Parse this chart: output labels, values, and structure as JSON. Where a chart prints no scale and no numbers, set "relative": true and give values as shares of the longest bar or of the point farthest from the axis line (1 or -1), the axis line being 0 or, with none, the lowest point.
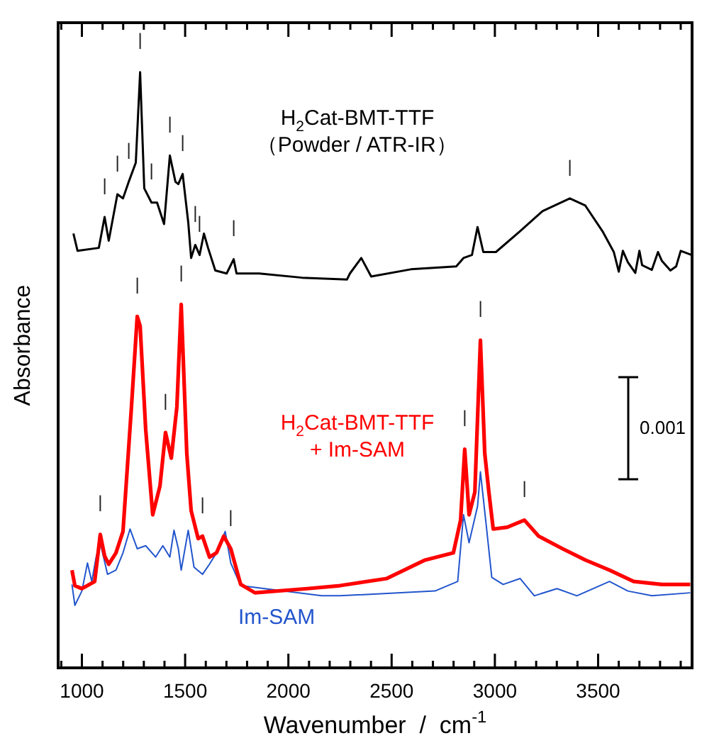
{
  "chart_data": {
    "type": "line",
    "relative": true,
    "xlabel": "Wavenumber  /  cm$^{-1}$",
    "ylabel": "Absorbance",
    "xlim": [
      885,
      3955
    ],
    "xticks": [
      {
        "value": 900,
        "label": null
      },
      1000,
      {
        "value": 1100,
        "label": null
      },
      {
        "value": 1200,
        "label": null
      },
      {
        "value": 1300,
        "label": null
      },
      {
        "value": 1400,
        "label": null
      },
      1500,
      {
        "value": 1600,
        "label": null
      },
      {
        "value": 1700,
        "label": null
      },
      {
        "value": 1800,
        "label": null
      },
      {
        "value": 1900,
        "label": null
      },
      2000,
      {
        "value": 2100,
        "label": null
      },
      {
        "value": 2200,
        "label": null
      },
      {
        "value": 2300,
        "label": null
      },
      {
        "value": 2400,
        "label": null
      },
      2500,
      {
        "value": 2600,
        "label": null
      },
      {
        "value": 2700,
        "label": null
      },
      {
        "value": 2800,
        "label": null
      },
      {
        "value": 2900,
        "label": null
      },
      3000,
      {
        "value": 3100,
        "label": null
      },
      {
        "value": 3200,
        "label": null
      },
      {
        "value": 3300,
        "label": null
      },
      {
        "value": 3400,
        "label": null
      },
      3500,
      {
        "value": 3600,
        "label": null
      },
      {
        "value": 3700,
        "label": null
      },
      {
        "value": 3800,
        "label": null
      },
      {
        "value": 3900,
        "label": null
      }
    ],
    "grid": false,
    "legend": false,
    "marker": "none",
    "line_style": "solid",
    "series": [
      {
        "name": "H$_{2}$Cat-BMT-TTF\n（Powder / ATR-IR）",
        "color": "#000000",
        "x": [
          959,
          979,
          1082,
          1110,
          1130,
          1172,
          1199,
          1227,
          1261,
          1282,
          1302,
          1337,
          1364,
          1398,
          1426,
          1453,
          1467,
          1488,
          1515,
          1529,
          1549,
          1570,
          1591,
          1611,
          1646,
          1701,
          1735,
          1749,
          1859,
          2065,
          2284,
          2298,
          2353,
          2401,
          2593,
          2813,
          2848,
          2889,
          2916,
          2944,
          3005,
          3122,
          3232,
          3363,
          3438,
          3521,
          3576,
          3600,
          3620,
          3644,
          3680,
          3700,
          3713,
          3760,
          3790,
          3809,
          3850,
          3878,
          3900,
          3953
        ],
        "values": [
          0.729,
          0.7,
          0.705,
          0.757,
          0.717,
          0.795,
          0.788,
          0.816,
          0.848,
          1.0,
          0.805,
          0.781,
          0.781,
          0.745,
          0.86,
          0.816,
          0.812,
          0.829,
          0.748,
          0.688,
          0.71,
          0.693,
          0.729,
          0.705,
          0.667,
          0.662,
          0.686,
          0.662,
          0.662,
          0.655,
          0.652,
          0.662,
          0.688,
          0.657,
          0.669,
          0.674,
          0.688,
          0.693,
          0.74,
          0.698,
          0.698,
          0.733,
          0.767,
          0.788,
          0.776,
          0.733,
          0.698,
          0.665,
          0.7,
          0.681,
          0.663,
          0.7,
          0.676,
          0.668,
          0.698,
          0.683,
          0.667,
          0.674,
          0.7,
          0.693
        ]
      },
      {
        "name": "H$_{2}$Cat-BMT-TTF\n+ Im-SAM",
        "color": "#ff0000",
        "x": [
          952,
          966,
          1000,
          1062,
          1089,
          1110,
          1130,
          1165,
          1199,
          1240,
          1268,
          1282,
          1309,
          1343,
          1378,
          1405,
          1433,
          1460,
          1481,
          1508,
          1529,
          1563,
          1584,
          1618,
          1652,
          1687,
          1721,
          1769,
          1838,
          2092,
          2250,
          2477,
          2662,
          2799,
          2834,
          2854,
          2875,
          2903,
          2930,
          2951,
          2971,
          2992,
          3060,
          3143,
          3212,
          3328,
          3438,
          3555,
          3672,
          3809,
          3946
        ],
        "values": [
          0.164,
          0.138,
          0.133,
          0.145,
          0.224,
          0.188,
          0.174,
          0.193,
          0.229,
          0.438,
          0.59,
          0.574,
          0.4,
          0.257,
          0.305,
          0.395,
          0.352,
          0.438,
          0.61,
          0.36,
          0.264,
          0.217,
          0.221,
          0.186,
          0.193,
          0.221,
          0.2,
          0.14,
          0.126,
          0.133,
          0.138,
          0.15,
          0.181,
          0.193,
          0.248,
          0.367,
          0.257,
          0.295,
          0.55,
          0.36,
          0.295,
          0.233,
          0.236,
          0.248,
          0.221,
          0.2,
          0.181,
          0.164,
          0.145,
          0.14,
          0.14
        ]
      },
      {
        "name": "Im-SAM",
        "color": "#2255cc",
        "x": [
          952,
          966,
          1000,
          1027,
          1048,
          1069,
          1089,
          1124,
          1165,
          1199,
          1233,
          1268,
          1309,
          1357,
          1392,
          1426,
          1446,
          1467,
          1481,
          1515,
          1543,
          1584,
          1618,
          1652,
          1694,
          1721,
          1769,
          1975,
          2161,
          2250,
          2710,
          2820,
          2848,
          2875,
          2916,
          2930,
          2958,
          2985,
          3040,
          3122,
          3191,
          3301,
          3397,
          3555,
          3644,
          3761,
          3946
        ],
        "values": [
          0.14,
          0.105,
          0.129,
          0.176,
          0.145,
          0.186,
          0.21,
          0.157,
          0.164,
          0.193,
          0.233,
          0.2,
          0.205,
          0.186,
          0.205,
          0.186,
          0.231,
          0.2,
          0.164,
          0.231,
          0.169,
          0.157,
          0.174,
          0.193,
          0.229,
          0.176,
          0.138,
          0.129,
          0.121,
          0.121,
          0.129,
          0.145,
          0.257,
          0.21,
          0.271,
          0.329,
          0.24,
          0.152,
          0.14,
          0.15,
          0.121,
          0.133,
          0.121,
          0.145,
          0.129,
          0.121,
          0.126
        ]
      }
    ],
    "annotations": [
      "0.001",
      {
        "text": "|",
        "x": 1110,
        "y": 0.757
      },
      {
        "text": "|",
        "x": 1172,
        "y": 0.795
      },
      {
        "text": "|",
        "x": 1227,
        "y": 0.816
      },
      {
        "text": "|",
        "x": 1282,
        "y": 1.0
      },
      {
        "text": "|",
        "x": 1337,
        "y": 0.781
      },
      {
        "text": "|",
        "x": 1426,
        "y": 0.86
      },
      {
        "text": "|",
        "x": 1488,
        "y": 0.829
      },
      {
        "text": "|",
        "x": 1549,
        "y": 0.71
      },
      {
        "text": "|",
        "x": 1570,
        "y": 0.693
      },
      {
        "text": "|",
        "x": 1735,
        "y": 0.686
      },
      {
        "text": "|",
        "x": 3363,
        "y": 0.788
      },
      {
        "text": "|",
        "x": 1268,
        "y": 0.59
      },
      {
        "text": "|",
        "x": 1481,
        "y": 0.61
      },
      {
        "text": "|",
        "x": 1405,
        "y": 0.395
      },
      {
        "text": "|",
        "x": 1089,
        "y": 0.224
      },
      {
        "text": "|",
        "x": 1584,
        "y": 0.221
      },
      {
        "text": "|",
        "x": 1721,
        "y": 0.2
      },
      {
        "text": "|",
        "x": 2854,
        "y": 0.367
      },
      {
        "text": "|",
        "x": 2930,
        "y": 0.55
      },
      {
        "text": "|",
        "x": 3143,
        "y": 0.248
      }
    ]
  }
}
